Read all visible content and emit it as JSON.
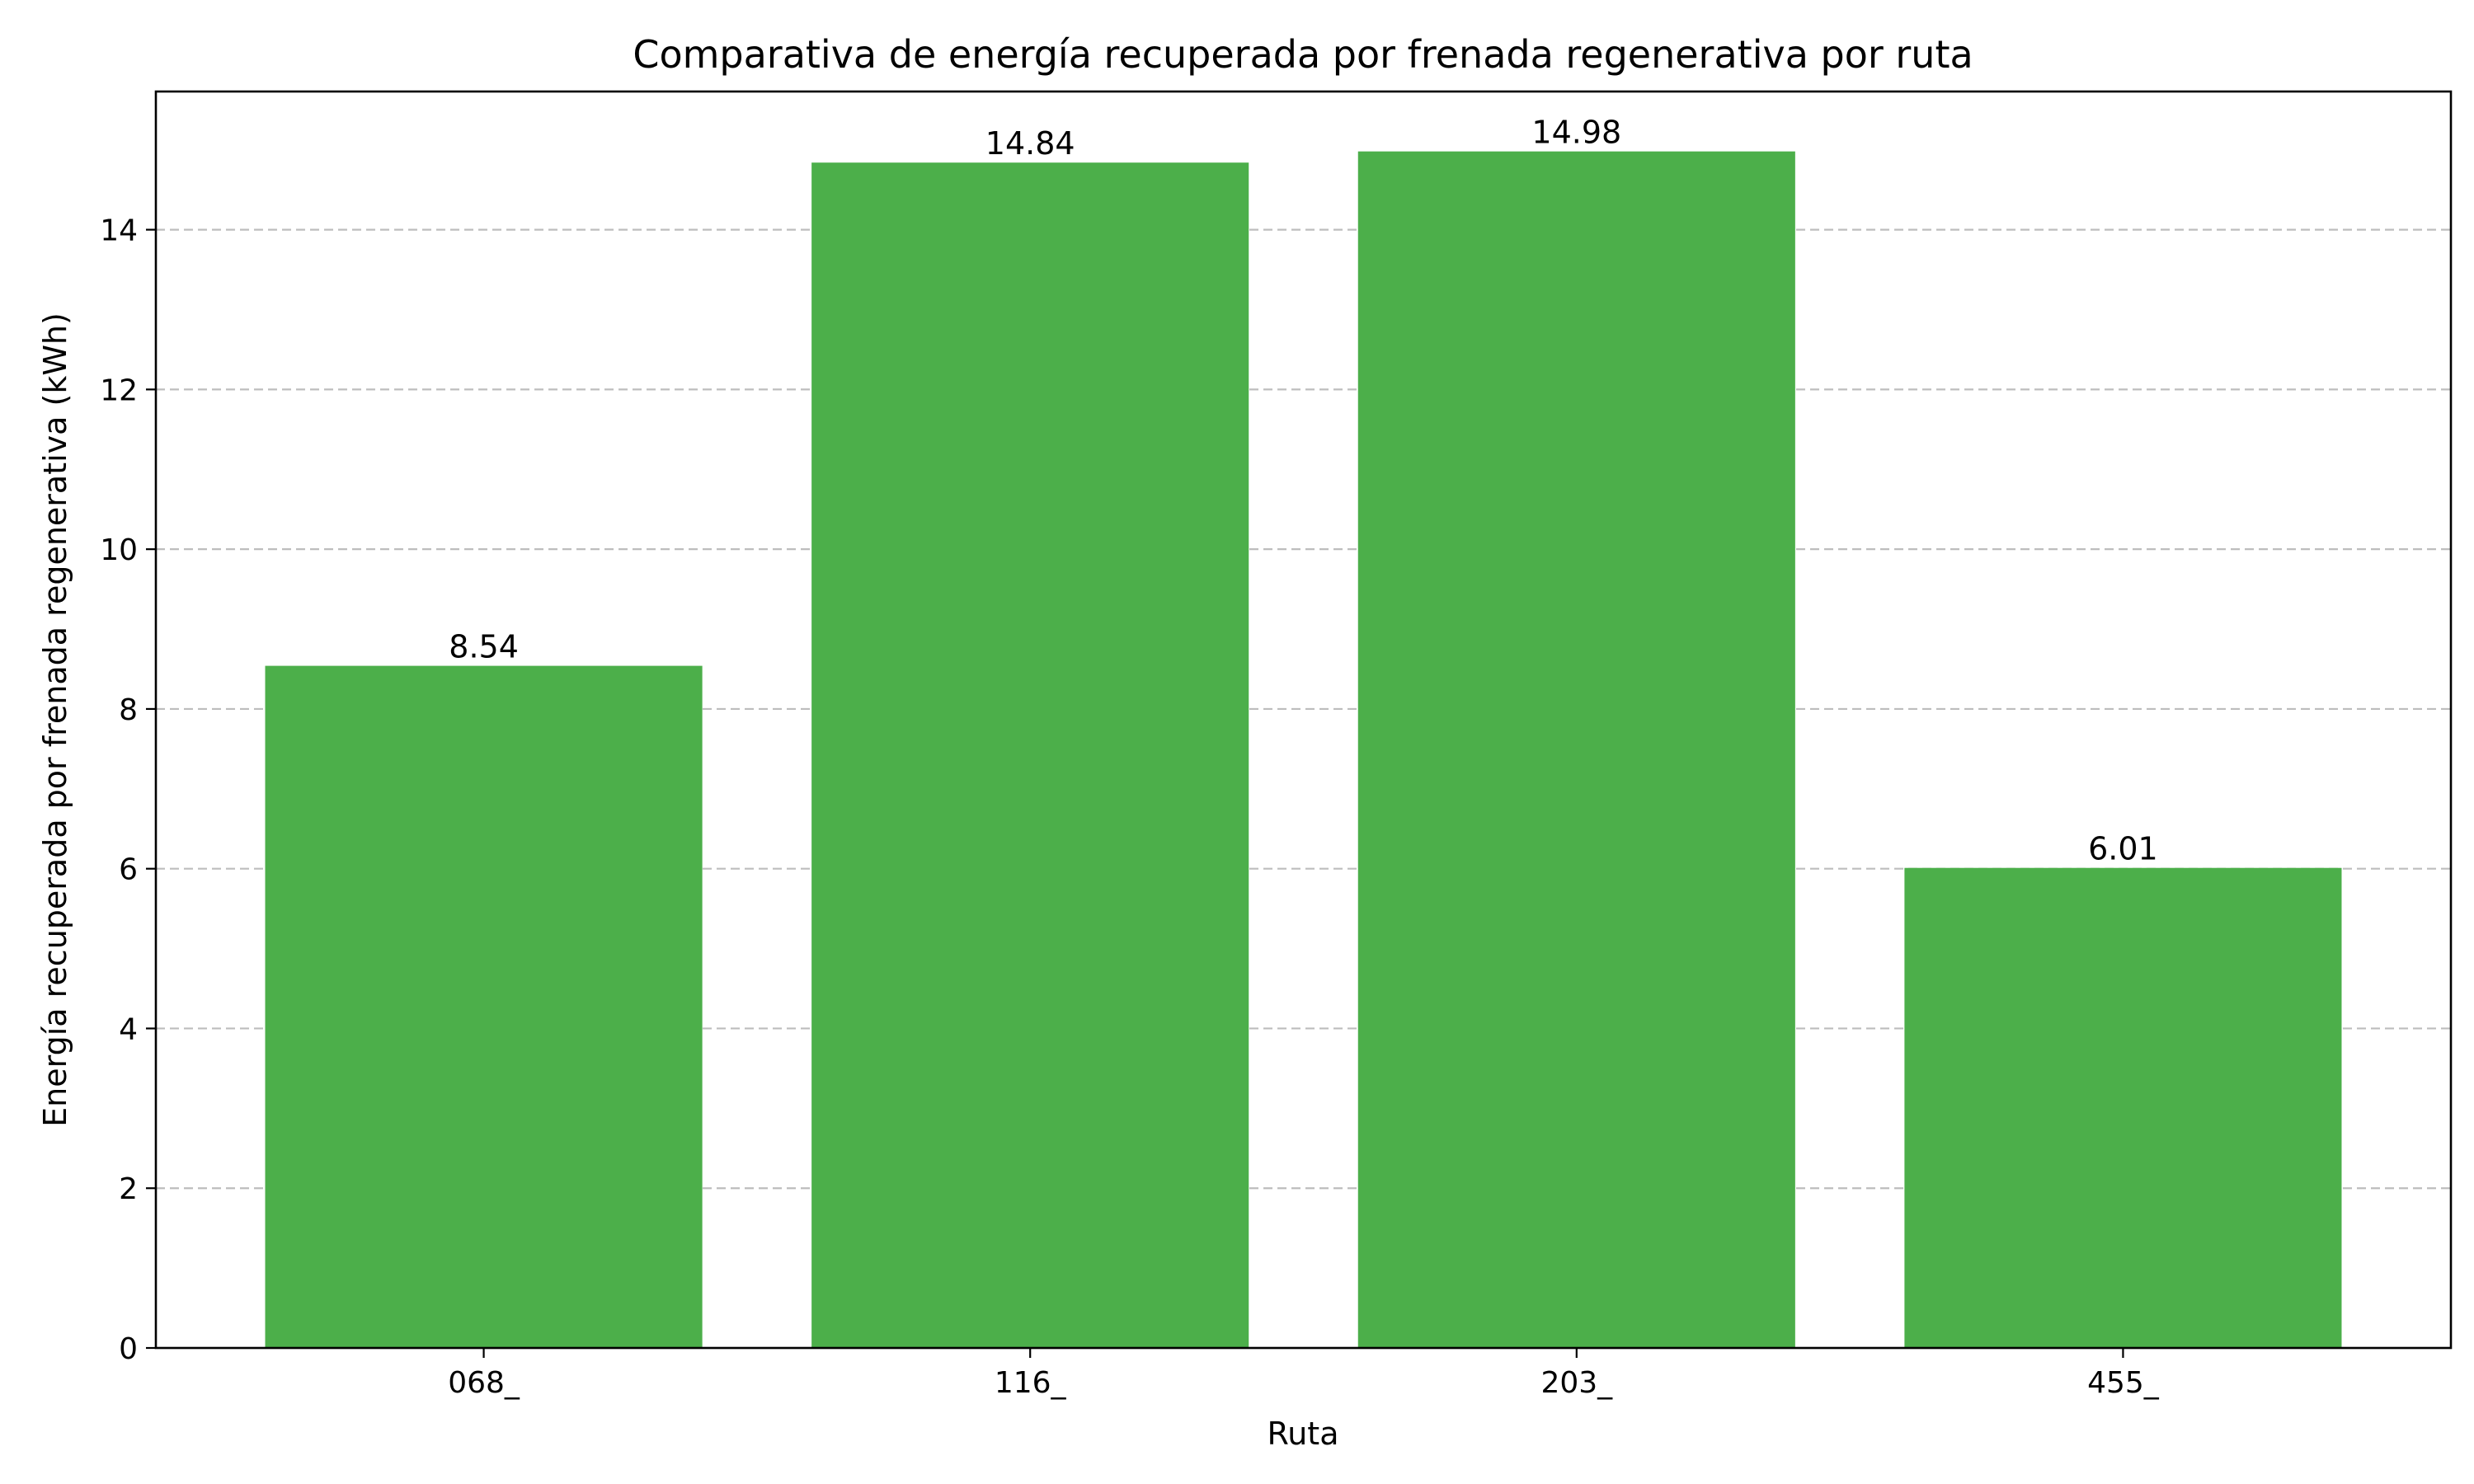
{
  "chart_data": {
    "type": "bar",
    "title": "Comparativa de energía recuperada por frenada regenerativa por ruta",
    "xlabel": "Ruta",
    "ylabel": "Energía recuperada por frenada regenerativa (kWh)",
    "categories": [
      "068_",
      "116_",
      "203_",
      "455_"
    ],
    "values": [
      8.54,
      14.84,
      14.98,
      6.01
    ],
    "value_labels": [
      "8.54",
      "14.84",
      "14.98",
      "6.01"
    ],
    "yticks": [
      0,
      2,
      4,
      6,
      8,
      10,
      12,
      14
    ],
    "ytick_labels": [
      "0",
      "2",
      "4",
      "6",
      "8",
      "10",
      "12",
      "14"
    ],
    "ylim": [
      0,
      15.73
    ],
    "grid": "y, dashed",
    "bar_color": "#4caf4a"
  }
}
